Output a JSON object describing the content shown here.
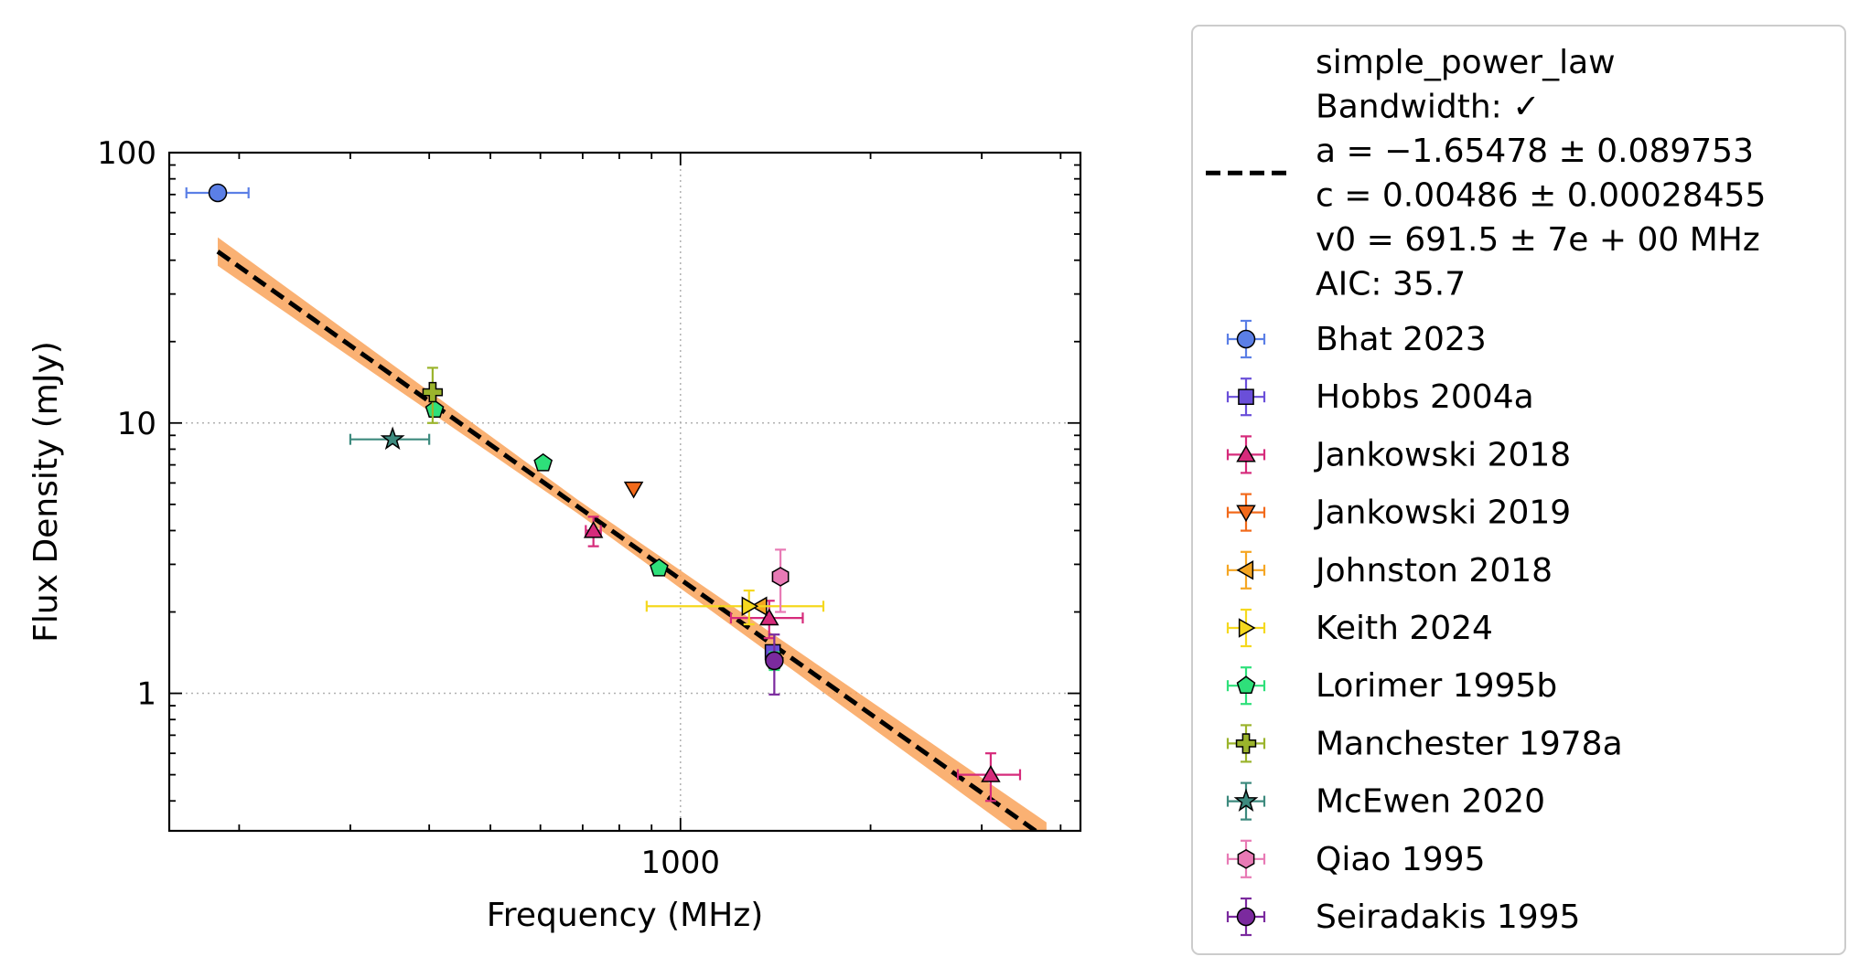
{
  "chart_data": {
    "type": "scatter",
    "xlabel": "Frequency (MHz)",
    "ylabel": "Flux Density (mJy)",
    "xscale": "log",
    "yscale": "log",
    "xlim": [
      155,
      4300
    ],
    "ylim": [
      0.31,
      100
    ],
    "x_ticks": [
      {
        "value": 1000,
        "label": "1000"
      }
    ],
    "y_ticks": [
      {
        "value": 100,
        "label": "100"
      },
      {
        "value": 10,
        "label": "10"
      },
      {
        "value": 1,
        "label": "1"
      }
    ],
    "grid": true,
    "legend_position": "outside-right",
    "fit": {
      "model": "simple_power_law",
      "text_lines": [
        "simple_power_law",
        "Bandwidth: ✓",
        "a = −1.65478 ± 0.089753",
        "c = 0.00486 ± 0.00028455",
        "v0 = 691.5 ± 7e + 00 MHz",
        "AIC: 35.7"
      ],
      "a": -1.65478,
      "c": 0.00486,
      "v0": 691.5,
      "x_range": [
        185,
        3800
      ],
      "band_color": "#f9a35b",
      "line_color": "#000000"
    },
    "series": [
      {
        "name": "Bhat 2023",
        "marker": "circle",
        "color": "#5b7fe6",
        "points": [
          {
            "x": 185,
            "y": 71,
            "xerr": [
              20,
              22
            ],
            "yerr": [
              0,
              0
            ]
          }
        ]
      },
      {
        "name": "Hobbs 2004a",
        "marker": "square",
        "color": "#6a4fd9",
        "points": [
          {
            "x": 1400,
            "y": 1.42,
            "xerr": [
              0,
              0
            ],
            "yerr": [
              0.05,
              0.05
            ]
          }
        ]
      },
      {
        "name": "Jankowski 2018",
        "marker": "triangle-up",
        "color": "#d62b7b",
        "points": [
          {
            "x": 728,
            "y": 4.0,
            "xerr": [
              20,
              20
            ],
            "yerr": [
              0.5,
              0.5
            ]
          },
          {
            "x": 1382,
            "y": 1.9,
            "xerr": [
              180,
              180
            ],
            "yerr": [
              0.3,
              0.3
            ]
          },
          {
            "x": 3100,
            "y": 0.5,
            "xerr": [
              350,
              350
            ],
            "yerr": [
              0.1,
              0.1
            ]
          }
        ]
      },
      {
        "name": "Jankowski 2019",
        "marker": "triangle-down",
        "color": "#f26a1b",
        "points": [
          {
            "x": 843,
            "y": 5.7,
            "xerr": [
              0,
              0
            ],
            "yerr": [
              0,
              0
            ]
          }
        ]
      },
      {
        "name": "Johnston 2018",
        "marker": "triangle-left",
        "color": "#f5a623",
        "points": [
          {
            "x": 1335,
            "y": 2.1,
            "xerr": [
              0,
              0
            ],
            "yerr": [
              0,
              0
            ]
          }
        ]
      },
      {
        "name": "Keith 2024",
        "marker": "triangle-right",
        "color": "#f5d81e",
        "points": [
          {
            "x": 1284,
            "y": 2.1,
            "xerr": [
              400,
              400
            ],
            "yerr": [
              0.3,
              0.3
            ]
          }
        ]
      },
      {
        "name": "Lorimer 1995b",
        "marker": "pentagon",
        "color": "#2ee07a",
        "points": [
          {
            "x": 408,
            "y": 11.2,
            "xerr": [
              0,
              0
            ],
            "yerr": [
              0,
              0
            ]
          },
          {
            "x": 606,
            "y": 7.1,
            "xerr": [
              0,
              0
            ],
            "yerr": [
              0,
              0
            ]
          },
          {
            "x": 925,
            "y": 2.9,
            "xerr": [
              0,
              0
            ],
            "yerr": [
              0,
              0
            ]
          },
          {
            "x": 1408,
            "y": 1.32,
            "xerr": [
              0,
              0
            ],
            "yerr": [
              0.1,
              0.1
            ]
          }
        ]
      },
      {
        "name": "Manchester 1978a",
        "marker": "plus",
        "color": "#9bb42c",
        "points": [
          {
            "x": 405,
            "y": 13,
            "xerr": [
              0,
              0
            ],
            "yerr": [
              3,
              3
            ]
          }
        ]
      },
      {
        "name": "McEwen 2020",
        "marker": "star",
        "color": "#3d8a7e",
        "points": [
          {
            "x": 350,
            "y": 8.7,
            "xerr": [
              50,
              50
            ],
            "yerr": [
              0,
              0
            ]
          }
        ]
      },
      {
        "name": "Qiao 1995",
        "marker": "hexagon",
        "color": "#e87ab5",
        "points": [
          {
            "x": 1440,
            "y": 2.7,
            "xerr": [
              40,
              40
            ],
            "yerr": [
              0.7,
              0.7
            ]
          }
        ]
      },
      {
        "name": "Seiradakis 1995",
        "marker": "circle",
        "color": "#7b2a9e",
        "points": [
          {
            "x": 1408,
            "y": 1.32,
            "xerr": [
              0,
              0
            ],
            "yerr": [
              0.33,
              0.33
            ]
          }
        ]
      }
    ]
  }
}
